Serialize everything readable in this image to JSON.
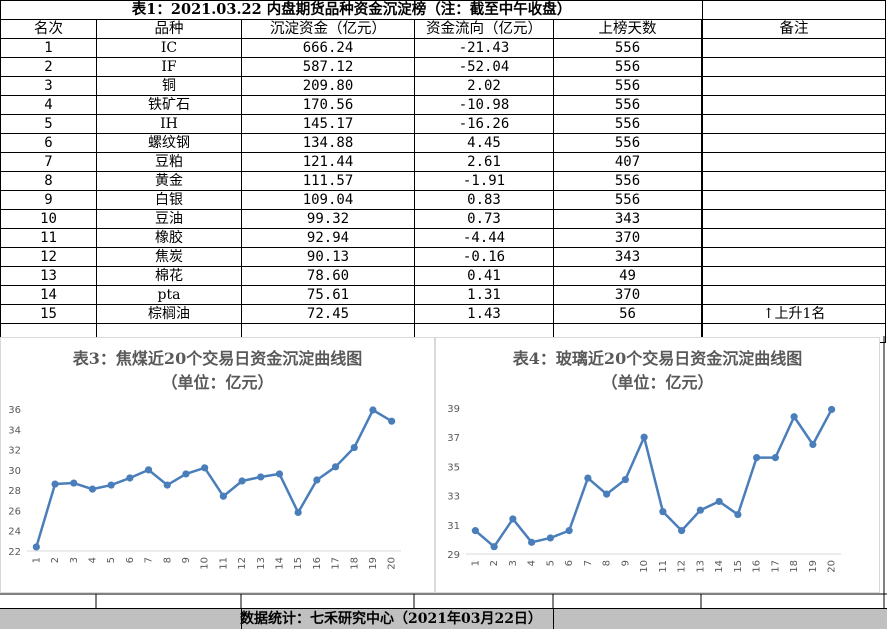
{
  "table": {
    "title": "表1：2021.03.22 内盘期货品种资金沉淀榜（注：截至中午收盘）",
    "headers": [
      "名次",
      "品种",
      "沉淀资金（亿元）",
      "资金流向（亿元）",
      "上榜天数",
      "",
      "备注"
    ],
    "rows": [
      {
        "rank": "1",
        "name": "IC",
        "fund": "666.24",
        "flow": "-21.43",
        "days": "556",
        "note": ""
      },
      {
        "rank": "2",
        "name": "IF",
        "fund": "587.12",
        "flow": "-52.04",
        "days": "556",
        "note": ""
      },
      {
        "rank": "3",
        "name": "铜",
        "fund": "209.80",
        "flow": "2.02",
        "days": "556",
        "note": ""
      },
      {
        "rank": "4",
        "name": "铁矿石",
        "fund": "170.56",
        "flow": "-10.98",
        "days": "556",
        "note": ""
      },
      {
        "rank": "5",
        "name": "IH",
        "fund": "145.17",
        "flow": "-16.26",
        "days": "556",
        "note": ""
      },
      {
        "rank": "6",
        "name": "螺纹钢",
        "fund": "134.88",
        "flow": "4.45",
        "days": "556",
        "note": ""
      },
      {
        "rank": "7",
        "name": "豆粕",
        "fund": "121.44",
        "flow": "2.61",
        "days": "407",
        "note": ""
      },
      {
        "rank": "8",
        "name": "黄金",
        "fund": "111.57",
        "flow": "-1.91",
        "days": "556",
        "note": ""
      },
      {
        "rank": "9",
        "name": "白银",
        "fund": "109.04",
        "flow": "0.83",
        "days": "556",
        "note": ""
      },
      {
        "rank": "10",
        "name": "豆油",
        "fund": "99.32",
        "flow": "0.73",
        "days": "343",
        "note": ""
      },
      {
        "rank": "11",
        "name": "橡胶",
        "fund": "92.94",
        "flow": "-4.44",
        "days": "370",
        "note": ""
      },
      {
        "rank": "12",
        "name": "焦炭",
        "fund": "90.13",
        "flow": "-0.16",
        "days": "343",
        "note": ""
      },
      {
        "rank": "13",
        "name": "棉花",
        "fund": "78.60",
        "flow": "0.41",
        "days": "49",
        "note": ""
      },
      {
        "rank": "14",
        "name": "pta",
        "fund": "75.61",
        "flow": "1.31",
        "days": "370",
        "note": ""
      },
      {
        "rank": "15",
        "name": "棕榈油",
        "fund": "72.45",
        "flow": "1.43",
        "days": "56",
        "note": "↑上升1名"
      }
    ]
  },
  "chart_data": [
    {
      "type": "line",
      "title": "表3：焦煤近20个交易日资金沉淀曲线图",
      "subtitle": "（单位：亿元）",
      "x": [
        "1",
        "2",
        "3",
        "4",
        "5",
        "6",
        "7",
        "8",
        "9",
        "10",
        "11",
        "12",
        "13",
        "14",
        "15",
        "16",
        "17",
        "18",
        "19",
        "20"
      ],
      "values": [
        22.4,
        28.6,
        28.7,
        28.1,
        28.5,
        29.2,
        30.0,
        28.5,
        29.6,
        30.2,
        27.4,
        28.9,
        29.3,
        29.6,
        25.8,
        29.0,
        30.3,
        32.2,
        35.9,
        34.8
      ],
      "ylim": [
        22,
        36
      ],
      "yticks": [
        22,
        24,
        26,
        28,
        30,
        32,
        34,
        36
      ],
      "grid": false,
      "color": "#4a7ebb"
    },
    {
      "type": "line",
      "title": "表4：玻璃近20个交易日资金沉淀曲线图",
      "subtitle": "（单位：亿元）",
      "x": [
        "1",
        "2",
        "3",
        "4",
        "5",
        "6",
        "7",
        "8",
        "9",
        "10",
        "11",
        "12",
        "13",
        "14",
        "15",
        "16",
        "17",
        "18",
        "19",
        "20"
      ],
      "values": [
        30.6,
        29.5,
        31.4,
        29.8,
        30.1,
        30.6,
        34.2,
        33.1,
        34.1,
        37.0,
        31.9,
        30.6,
        32.0,
        32.6,
        31.7,
        35.6,
        35.6,
        38.4,
        36.5,
        38.9
      ],
      "ylim": [
        29,
        39
      ],
      "yticks": [
        29,
        31,
        33,
        35,
        37,
        39
      ],
      "grid": false,
      "color": "#4a7ebb"
    }
  ],
  "footer": {
    "text": "数据统计：七禾研究中心（2021年03月22日）"
  }
}
